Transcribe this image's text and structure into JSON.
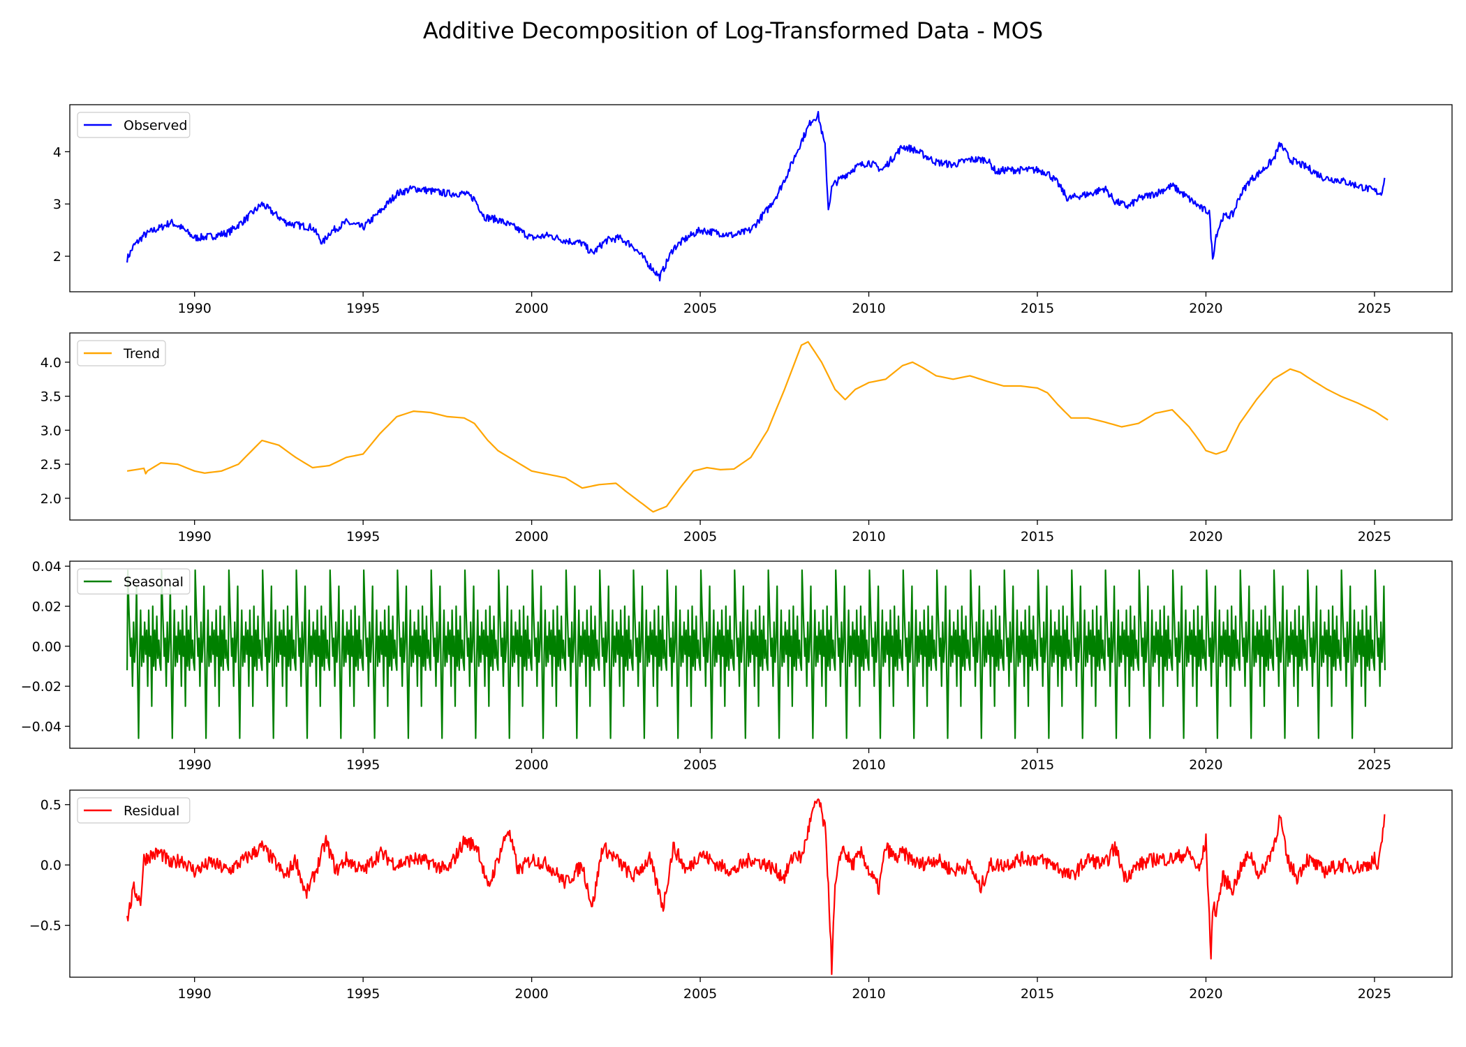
{
  "figure": {
    "title": "Additive Decomposition of Log-Transformed Data - MOS"
  },
  "chart_data": [
    {
      "type": "line",
      "id": "observed",
      "legend": "Observed",
      "legend_position": "top-left",
      "color": "#0000ff",
      "xlim": [
        1986.3,
        2027.3
      ],
      "ylim": [
        1.32,
        4.9
      ],
      "xticks": [
        1990,
        1995,
        2000,
        2005,
        2010,
        2015,
        2020,
        2025
      ],
      "yticks": [
        2,
        3,
        4
      ],
      "series": [
        {
          "name": "Observed",
          "x": [
            1988.0,
            1988.2,
            1988.5,
            1988.8,
            1989.0,
            1989.3,
            1989.6,
            1990.0,
            1990.5,
            1991.0,
            1991.5,
            1992.0,
            1992.3,
            1992.7,
            1993.0,
            1993.5,
            1993.8,
            1994.0,
            1994.5,
            1995.0,
            1995.5,
            1996.0,
            1996.5,
            1997.0,
            1997.5,
            1998.0,
            1998.3,
            1998.6,
            1999.0,
            1999.5,
            2000.0,
            2000.5,
            2001.0,
            2001.5,
            2001.8,
            2002.2,
            2002.6,
            2003.0,
            2003.4,
            2003.8,
            2004.2,
            2004.6,
            2005.0,
            2005.5,
            2006.0,
            2006.5,
            2007.0,
            2007.3,
            2007.6,
            2008.0,
            2008.3,
            2008.5,
            2008.7,
            2008.8,
            2008.9,
            2009.0,
            2009.3,
            2009.6,
            2010.0,
            2010.4,
            2010.8,
            2011.0,
            2011.3,
            2011.6,
            2012.0,
            2012.5,
            2013.0,
            2013.5,
            2013.8,
            2014.0,
            2014.5,
            2015.0,
            2015.3,
            2015.6,
            2015.9,
            2016.2,
            2016.6,
            2017.0,
            2017.3,
            2017.7,
            2018.0,
            2018.5,
            2019.0,
            2019.5,
            2019.9,
            2020.1,
            2020.2,
            2020.3,
            2020.5,
            2020.8,
            2021.0,
            2021.3,
            2021.6,
            2022.0,
            2022.2,
            2022.5,
            2023.0,
            2023.5,
            2024.0,
            2024.5,
            2025.0,
            2025.2,
            2025.3
          ],
          "values": [
            1.95,
            2.2,
            2.4,
            2.5,
            2.55,
            2.65,
            2.55,
            2.35,
            2.38,
            2.45,
            2.7,
            3.0,
            2.85,
            2.65,
            2.6,
            2.55,
            2.25,
            2.45,
            2.65,
            2.55,
            2.85,
            3.2,
            3.3,
            3.25,
            3.2,
            3.2,
            3.1,
            2.75,
            2.7,
            2.55,
            2.35,
            2.4,
            2.3,
            2.25,
            2.05,
            2.3,
            2.35,
            2.2,
            1.9,
            1.6,
            2.15,
            2.35,
            2.5,
            2.45,
            2.4,
            2.5,
            2.9,
            3.2,
            3.6,
            4.2,
            4.6,
            4.7,
            4.1,
            2.9,
            3.3,
            3.4,
            3.55,
            3.7,
            3.8,
            3.65,
            3.95,
            4.1,
            4.05,
            3.95,
            3.8,
            3.75,
            3.85,
            3.85,
            3.6,
            3.65,
            3.65,
            3.65,
            3.6,
            3.4,
            3.1,
            3.15,
            3.2,
            3.3,
            3.05,
            2.95,
            3.1,
            3.2,
            3.35,
            3.1,
            2.9,
            2.85,
            1.95,
            2.4,
            2.75,
            2.8,
            3.15,
            3.45,
            3.6,
            3.85,
            4.15,
            3.85,
            3.7,
            3.5,
            3.45,
            3.35,
            3.25,
            3.2,
            3.5
          ]
        }
      ]
    },
    {
      "type": "line",
      "id": "trend",
      "legend": "Trend",
      "legend_position": "top-left",
      "color": "#ffa500",
      "xlim": [
        1986.3,
        2027.3
      ],
      "ylim": [
        1.68,
        4.43
      ],
      "xticks": [
        1990,
        1995,
        2000,
        2005,
        2010,
        2015,
        2020,
        2025
      ],
      "yticks": [
        2.0,
        2.5,
        3.0,
        3.5,
        4.0
      ],
      "ytick_labels": [
        "2.0",
        "2.5",
        "3.0",
        "3.5",
        "4.0"
      ],
      "series": [
        {
          "name": "Trend",
          "x": [
            1988.0,
            1988.5,
            1988.55,
            1988.6,
            1989.0,
            1989.5,
            1990.0,
            1990.3,
            1990.8,
            1991.3,
            1991.8,
            1992.0,
            1992.5,
            1993.0,
            1993.5,
            1994.0,
            1994.5,
            1995.0,
            1995.5,
            1996.0,
            1996.5,
            1997.0,
            1997.5,
            1998.0,
            1998.3,
            1998.7,
            1999.0,
            1999.5,
            2000.0,
            2000.5,
            2001.0,
            2001.5,
            2002.0,
            2002.5,
            2002.8,
            2003.2,
            2003.6,
            2004.0,
            2004.4,
            2004.8,
            2005.2,
            2005.6,
            2006.0,
            2006.5,
            2007.0,
            2007.5,
            2008.0,
            2008.2,
            2008.6,
            2009.0,
            2009.3,
            2009.6,
            2010.0,
            2010.5,
            2011.0,
            2011.3,
            2011.6,
            2012.0,
            2012.5,
            2013.0,
            2013.5,
            2014.0,
            2014.5,
            2015.0,
            2015.3,
            2015.6,
            2016.0,
            2016.5,
            2017.0,
            2017.5,
            2018.0,
            2018.5,
            2019.0,
            2019.5,
            2019.8,
            2020.0,
            2020.3,
            2020.6,
            2021.0,
            2021.5,
            2022.0,
            2022.5,
            2022.8,
            2023.2,
            2023.6,
            2024.0,
            2024.5,
            2025.0,
            2025.4
          ],
          "values": [
            2.4,
            2.44,
            2.36,
            2.4,
            2.52,
            2.5,
            2.4,
            2.37,
            2.4,
            2.5,
            2.75,
            2.85,
            2.78,
            2.6,
            2.45,
            2.48,
            2.6,
            2.65,
            2.95,
            3.2,
            3.28,
            3.26,
            3.2,
            3.18,
            3.1,
            2.85,
            2.7,
            2.55,
            2.4,
            2.35,
            2.3,
            2.15,
            2.2,
            2.22,
            2.1,
            1.95,
            1.8,
            1.88,
            2.15,
            2.4,
            2.45,
            2.42,
            2.43,
            2.6,
            3.0,
            3.6,
            4.25,
            4.3,
            4.0,
            3.6,
            3.45,
            3.6,
            3.7,
            3.75,
            3.95,
            4.0,
            3.92,
            3.8,
            3.75,
            3.8,
            3.72,
            3.65,
            3.65,
            3.62,
            3.55,
            3.38,
            3.18,
            3.18,
            3.12,
            3.05,
            3.1,
            3.25,
            3.3,
            3.05,
            2.85,
            2.7,
            2.65,
            2.7,
            3.1,
            3.45,
            3.75,
            3.9,
            3.85,
            3.72,
            3.6,
            3.5,
            3.4,
            3.28,
            3.15
          ]
        }
      ]
    },
    {
      "type": "line",
      "id": "seasonal",
      "legend": "Seasonal",
      "legend_position": "top-left",
      "color": "#008000",
      "xlim": [
        1986.3,
        2027.3
      ],
      "ylim": [
        -0.051,
        0.0425
      ],
      "xticks": [
        1990,
        1995,
        2000,
        2005,
        2010,
        2015,
        2020,
        2025
      ],
      "yticks": [
        -0.04,
        -0.02,
        0.0,
        0.02,
        0.04
      ],
      "ytick_labels": [
        "−0.04",
        "−0.02",
        "0.00",
        "0.02",
        "0.04"
      ],
      "series": [
        {
          "name": "Seasonal",
          "start": 1988.0,
          "end": 2025.33,
          "period": 1.0,
          "x_phase": [
            0.0,
            0.02,
            0.05,
            0.07,
            0.1,
            0.13,
            0.16,
            0.19,
            0.22,
            0.25,
            0.28,
            0.31,
            0.34,
            0.37,
            0.4,
            0.43,
            0.46,
            0.49,
            0.52,
            0.55,
            0.58,
            0.61,
            0.64,
            0.67,
            0.7,
            0.73,
            0.76,
            0.79,
            0.82,
            0.85,
            0.88,
            0.91,
            0.94,
            0.97
          ],
          "values": [
            -0.012,
            0.038,
            0.02,
            0.01,
            -0.005,
            0.004,
            -0.02,
            0.012,
            -0.008,
            0.002,
            0.03,
            -0.012,
            -0.046,
            -0.005,
            0.018,
            -0.01,
            0.005,
            -0.008,
            0.012,
            -0.004,
            0.008,
            -0.02,
            0.018,
            -0.005,
            0.005,
            -0.03,
            0.02,
            -0.01,
            0.008,
            -0.012,
            0.015,
            -0.006,
            0.003,
            -0.008
          ]
        }
      ]
    },
    {
      "type": "line",
      "id": "residual",
      "legend": "Residual",
      "legend_position": "top-left",
      "color": "#ff0000",
      "xlim": [
        1986.3,
        2027.3
      ],
      "ylim": [
        -0.93,
        0.62
      ],
      "xticks": [
        1990,
        1995,
        2000,
        2005,
        2010,
        2015,
        2020,
        2025
      ],
      "yticks": [
        -0.5,
        0.0,
        0.5
      ],
      "ytick_labels": [
        "−0.5",
        "0.0",
        "0.5"
      ],
      "series": [
        {
          "name": "Residual",
          "x": [
            1988.0,
            1988.2,
            1988.4,
            1988.5,
            1988.7,
            1989.0,
            1989.3,
            1989.6,
            1990.0,
            1990.5,
            1991.0,
            1991.5,
            1992.0,
            1992.3,
            1992.7,
            1993.0,
            1993.3,
            1993.6,
            1993.9,
            1994.2,
            1994.5,
            1995.0,
            1995.5,
            1996.0,
            1996.5,
            1997.0,
            1997.5,
            1998.0,
            1998.4,
            1998.7,
            1999.0,
            1999.3,
            1999.6,
            2000.0,
            2000.5,
            2001.0,
            2001.5,
            2001.8,
            2002.1,
            2002.5,
            2003.0,
            2003.5,
            2003.9,
            2004.2,
            2004.6,
            2005.0,
            2005.5,
            2006.0,
            2006.5,
            2007.0,
            2007.5,
            2007.8,
            2008.0,
            2008.3,
            2008.5,
            2008.7,
            2008.8,
            2008.9,
            2009.0,
            2009.2,
            2009.5,
            2009.8,
            2010.0,
            2010.3,
            2010.5,
            2010.8,
            2011.0,
            2011.5,
            2012.0,
            2012.5,
            2013.0,
            2013.3,
            2013.6,
            2014.0,
            2014.5,
            2015.0,
            2015.5,
            2016.0,
            2016.5,
            2017.0,
            2017.3,
            2017.6,
            2018.0,
            2018.5,
            2019.0,
            2019.5,
            2019.8,
            2020.0,
            2020.15,
            2020.22,
            2020.3,
            2020.5,
            2020.8,
            2021.0,
            2021.3,
            2021.6,
            2022.0,
            2022.2,
            2022.4,
            2022.7,
            2023.0,
            2023.5,
            2024.0,
            2024.5,
            2024.8,
            2025.0,
            2025.1,
            2025.2,
            2025.3
          ],
          "values": [
            -0.45,
            -0.2,
            -0.3,
            0.05,
            0.08,
            0.1,
            0.0,
            0.05,
            -0.05,
            0.02,
            -0.05,
            0.05,
            0.15,
            0.05,
            -0.1,
            0.05,
            -0.25,
            -0.05,
            0.2,
            -0.05,
            0.05,
            -0.05,
            0.1,
            0.0,
            0.05,
            0.02,
            -0.05,
            0.2,
            0.15,
            -0.2,
            0.05,
            0.3,
            -0.05,
            0.05,
            0.0,
            -0.15,
            0.0,
            -0.35,
            0.15,
            0.05,
            -0.1,
            0.05,
            -0.35,
            0.15,
            -0.05,
            0.1,
            0.0,
            -0.05,
            0.05,
            0.0,
            -0.1,
            0.1,
            0.05,
            0.4,
            0.55,
            0.3,
            -0.15,
            -0.85,
            -0.2,
            0.15,
            0.0,
            0.1,
            -0.05,
            -0.2,
            0.15,
            0.05,
            0.1,
            0.0,
            0.05,
            -0.05,
            0.0,
            -0.2,
            0.0,
            0.0,
            0.05,
            0.05,
            0.0,
            -0.1,
            0.05,
            0.0,
            0.15,
            -0.1,
            0.0,
            0.05,
            0.05,
            0.1,
            -0.05,
            0.2,
            -0.75,
            -0.3,
            -0.4,
            -0.1,
            -0.2,
            -0.05,
            0.1,
            -0.1,
            0.15,
            0.4,
            0.05,
            -0.1,
            0.05,
            -0.05,
            0.0,
            -0.02,
            0.0,
            0.05,
            -0.05,
            0.15,
            0.42
          ]
        }
      ]
    }
  ]
}
